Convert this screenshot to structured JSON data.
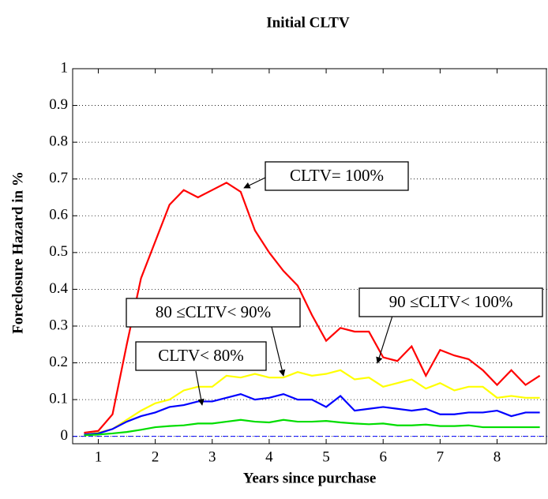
{
  "chart_data": {
    "type": "line",
    "title": "Initial CLTV",
    "x_label": "Years since purchase",
    "y_label": "Foreclosure Hazard in %",
    "x": [
      0.75,
      1,
      1.25,
      1.5,
      1.75,
      2,
      2.25,
      2.5,
      2.75,
      3,
      3.25,
      3.5,
      3.75,
      4,
      4.25,
      4.5,
      4.75,
      5,
      5.25,
      5.5,
      5.75,
      6,
      6.25,
      6.5,
      6.75,
      7,
      7.25,
      7.5,
      7.75,
      8,
      8.25,
      8.5,
      8.75
    ],
    "series": [
      {
        "name": "CLTV= 100%",
        "color": "#ff0000",
        "values": [
          0.01,
          0.015,
          0.06,
          0.25,
          0.43,
          0.53,
          0.63,
          0.67,
          0.65,
          0.67,
          0.69,
          0.665,
          0.56,
          0.5,
          0.45,
          0.41,
          0.33,
          0.26,
          0.295,
          0.285,
          0.285,
          0.215,
          0.205,
          0.245,
          0.165,
          0.235,
          0.22,
          0.21,
          0.18,
          0.14,
          0.18,
          0.14,
          0.165
        ]
      },
      {
        "name": "90 ≤CLTV< 100%",
        "color": "#ffff00",
        "values": [
          0.005,
          0.01,
          0.02,
          0.045,
          0.07,
          0.09,
          0.1,
          0.125,
          0.135,
          0.135,
          0.165,
          0.16,
          0.17,
          0.16,
          0.16,
          0.175,
          0.165,
          0.17,
          0.18,
          0.155,
          0.16,
          0.135,
          0.145,
          0.155,
          0.13,
          0.145,
          0.125,
          0.135,
          0.135,
          0.105,
          0.11,
          0.105,
          0.105
        ]
      },
      {
        "name": "80 ≤CLTV< 90%",
        "color": "#0000ff",
        "values": [
          0.005,
          0.008,
          0.02,
          0.04,
          0.055,
          0.065,
          0.08,
          0.085,
          0.095,
          0.095,
          0.105,
          0.115,
          0.1,
          0.105,
          0.115,
          0.1,
          0.1,
          0.08,
          0.11,
          0.07,
          0.075,
          0.08,
          0.075,
          0.07,
          0.075,
          0.06,
          0.06,
          0.065,
          0.065,
          0.07,
          0.055,
          0.065,
          0.065
        ]
      },
      {
        "name": "CLTV< 80%",
        "color": "#00dd00",
        "values": [
          0.003,
          0.005,
          0.008,
          0.012,
          0.018,
          0.025,
          0.028,
          0.03,
          0.035,
          0.035,
          0.04,
          0.045,
          0.04,
          0.038,
          0.045,
          0.04,
          0.04,
          0.042,
          0.038,
          0.035,
          0.033,
          0.035,
          0.03,
          0.03,
          0.032,
          0.028,
          0.028,
          0.03,
          0.025,
          0.025,
          0.025,
          0.025,
          0.025
        ]
      }
    ],
    "xlim": [
      0.55,
      8.88
    ],
    "xticks": [
      1,
      2,
      3,
      4,
      5,
      6,
      7,
      8
    ],
    "ylim": [
      -0.02,
      1
    ],
    "yticks": [
      0,
      0.1,
      0.2,
      0.3,
      0.4,
      0.5,
      0.6,
      0.7,
      0.8,
      0.9,
      1
    ],
    "grid": true,
    "reference_y": 0
  }
}
